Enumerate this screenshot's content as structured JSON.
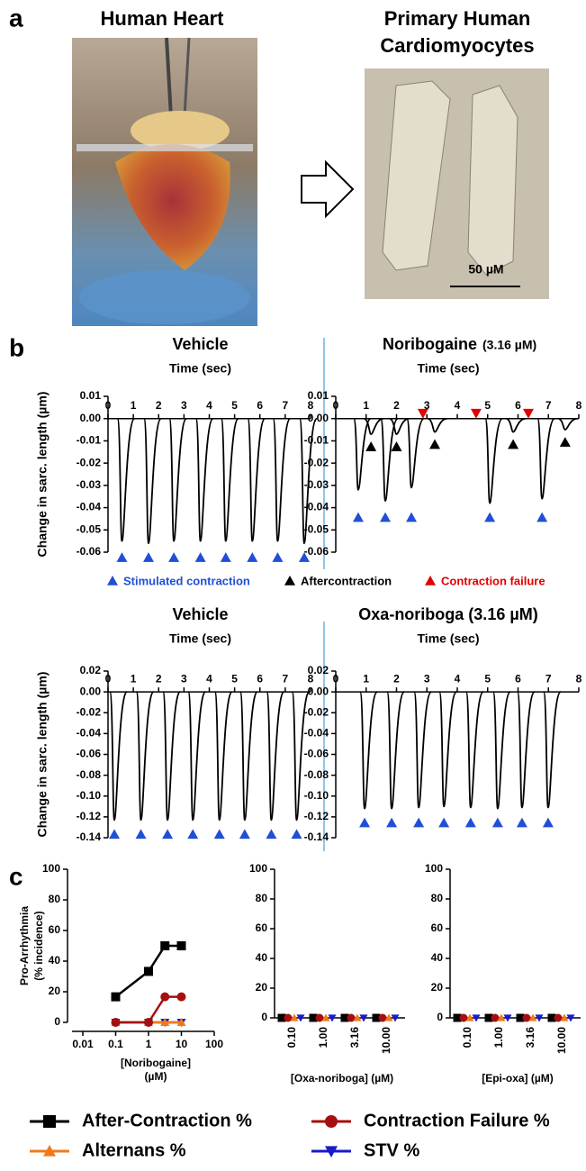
{
  "panel_a": {
    "label": "a",
    "heart_title": "Human Heart",
    "cells_title": [
      "Primary Human",
      "Cardiomyocytes"
    ],
    "scale_bar": "50 µM"
  },
  "panel_b": {
    "label": "b",
    "legend": [
      {
        "name": "Stimulated contraction",
        "color": "#1f4fd6"
      },
      {
        "name": "Aftercontraction",
        "color": "#000000"
      },
      {
        "name": "Contraction failure",
        "color": "#e00000"
      }
    ]
  },
  "panel_c": {
    "label": "c"
  },
  "chart_data": [
    {
      "type": "trace",
      "title": "Vehicle",
      "xlabel": "Time (sec)",
      "ylabel": "Change in sarc. length (µm)",
      "xlim": [
        0,
        8
      ],
      "xticks": [
        0,
        1,
        2,
        3,
        4,
        5,
        6,
        7,
        8
      ],
      "ylim": [
        -0.06,
        0.01
      ],
      "yticks": [
        0.01,
        {
          "value": 0,
          "label": "0.00"
        },
        -0.01,
        -0.02,
        -0.03,
        -0.04,
        -0.05,
        -0.06
      ],
      "contractions": {
        "x": [
          0.55,
          1.6,
          2.6,
          3.65,
          4.65,
          5.7,
          6.7,
          7.75
        ],
        "values": [
          -0.055,
          -0.056,
          -0.055,
          -0.055,
          -0.055,
          -0.055,
          -0.055,
          -0.056
        ]
      }
    },
    {
      "type": "trace",
      "title": "Noribogaine",
      "title_note": "(3.16 µM)",
      "xlabel": "Time (sec)",
      "xlim": [
        0,
        8
      ],
      "xticks": [
        0,
        1,
        2,
        3,
        4,
        5,
        6,
        7,
        8
      ],
      "ylim": [
        -0.06,
        0.01
      ],
      "yticks": [
        0.01,
        {
          "value": 0,
          "label": "0.00"
        },
        -0.01,
        -0.02,
        -0.03,
        -0.04,
        -0.05,
        -0.06
      ],
      "contractions": {
        "x": [
          0.74,
          1.63,
          2.49,
          5.07,
          6.79
        ],
        "values": [
          -0.032,
          -0.037,
          -0.031,
          -0.038,
          -0.036
        ]
      },
      "aftercontractions": {
        "x": [
          1.16,
          2.0,
          3.26,
          5.84,
          7.55
        ],
        "values": [
          -0.007,
          -0.007,
          -0.006,
          -0.006,
          -0.005
        ]
      },
      "failures": [
        2.87,
        4.62,
        6.34
      ]
    },
    {
      "type": "trace",
      "title": "Vehicle",
      "xlabel": "Time (sec)",
      "ylabel": "Change in sarc. length (µm)",
      "xlim": [
        0,
        8
      ],
      "xticks": [
        0,
        1,
        2,
        3,
        4,
        5,
        6,
        7,
        8
      ],
      "ylim": [
        -0.14,
        0.02
      ],
      "yticks": [
        0.02,
        {
          "value": 0,
          "label": "0.00"
        },
        -0.02,
        -0.04,
        -0.06,
        -0.08,
        {
          "value": -0.1,
          "label": "-0.10"
        },
        -0.12,
        -0.14
      ],
      "contractions": {
        "x": [
          0.25,
          1.3,
          2.35,
          3.35,
          4.4,
          5.4,
          6.45,
          7.45
        ],
        "values": [
          -0.123,
          -0.123,
          -0.123,
          -0.123,
          -0.123,
          -0.123,
          -0.123,
          -0.123
        ]
      }
    },
    {
      "type": "trace",
      "title": "Oxa-noriboga (3.16 µM)",
      "xlabel": "Time (sec)",
      "xlim": [
        0,
        8
      ],
      "xticks": [
        0,
        1,
        2,
        3,
        4,
        5,
        6,
        7,
        8
      ],
      "ylim": [
        -0.14,
        0.02
      ],
      "yticks": [
        0.02,
        {
          "value": 0,
          "label": "0.00"
        },
        -0.02,
        -0.04,
        -0.06,
        -0.08,
        {
          "value": -0.1,
          "label": "-0.10"
        },
        -0.12,
        -0.14
      ],
      "contractions": {
        "x": [
          0.95,
          1.84,
          2.73,
          3.56,
          4.44,
          5.33,
          6.13,
          6.99
        ],
        "values": [
          -0.112,
          -0.112,
          -0.111,
          -0.11,
          -0.111,
          -0.112,
          -0.111,
          -0.111
        ]
      }
    },
    {
      "type": "line",
      "ylabel": [
        "Pro-Arrhythmia",
        "(% incidence)"
      ],
      "xlabel": [
        "[Noribogaine]",
        "(µM)"
      ],
      "log_x": true,
      "xlim": [
        0.01,
        100
      ],
      "xticks": [
        0.01,
        0.1,
        1,
        10,
        100
      ],
      "ylim": [
        0,
        100
      ],
      "yticks": [
        0,
        20,
        40,
        60,
        80,
        100
      ],
      "x": [
        0.1,
        1,
        3.16,
        10
      ],
      "series": [
        {
          "name": "After-Contraction %",
          "color": "#000000",
          "marker": "square",
          "values": [
            16.7,
            33.3,
            50,
            50
          ]
        },
        {
          "name": "Contraction Failure %",
          "color": "#a50f0f",
          "marker": "circle",
          "values": [
            0,
            0,
            16.7,
            16.7
          ]
        },
        {
          "name": "Alternans %",
          "color": "#f07a1a",
          "marker": "triangle-up",
          "values": [
            0,
            0,
            0,
            0
          ]
        },
        {
          "name": "STV %",
          "color": "#1a1ac8",
          "marker": "triangle-down",
          "values": [
            0,
            0,
            0,
            0
          ]
        }
      ]
    },
    {
      "type": "dot",
      "xlabel": "[Oxa-noriboga] (µM)",
      "categories": [
        "0.10",
        "1.00",
        "3.16",
        "10.00"
      ],
      "ylim": [
        0,
        100
      ],
      "yticks": [
        0,
        20,
        40,
        60,
        80,
        100
      ],
      "series": [
        {
          "color": "#000000",
          "marker": "square",
          "values": [
            0,
            0,
            0,
            0
          ]
        },
        {
          "color": "#a50f0f",
          "marker": "circle",
          "values": [
            0,
            0,
            0,
            0
          ]
        },
        {
          "color": "#f07a1a",
          "marker": "triangle-up",
          "values": [
            0,
            0,
            0,
            0
          ]
        },
        {
          "color": "#1a1ac8",
          "marker": "triangle-down",
          "values": [
            0,
            0,
            0,
            0
          ]
        }
      ]
    },
    {
      "type": "dot",
      "xlabel": "[Epi-oxa] (µM)",
      "categories": [
        "0.10",
        "1.00",
        "3.16",
        "10.00"
      ],
      "ylim": [
        0,
        100
      ],
      "yticks": [
        0,
        20,
        40,
        60,
        80,
        100
      ],
      "series": [
        {
          "color": "#000000",
          "marker": "square",
          "values": [
            0,
            0,
            0,
            0
          ]
        },
        {
          "color": "#a50f0f",
          "marker": "circle",
          "values": [
            0,
            0,
            0,
            0
          ]
        },
        {
          "color": "#f07a1a",
          "marker": "triangle-up",
          "values": [
            0,
            0,
            0,
            0
          ]
        },
        {
          "color": "#1a1ac8",
          "marker": "triangle-down",
          "values": [
            0,
            0,
            0,
            0
          ]
        }
      ]
    }
  ]
}
